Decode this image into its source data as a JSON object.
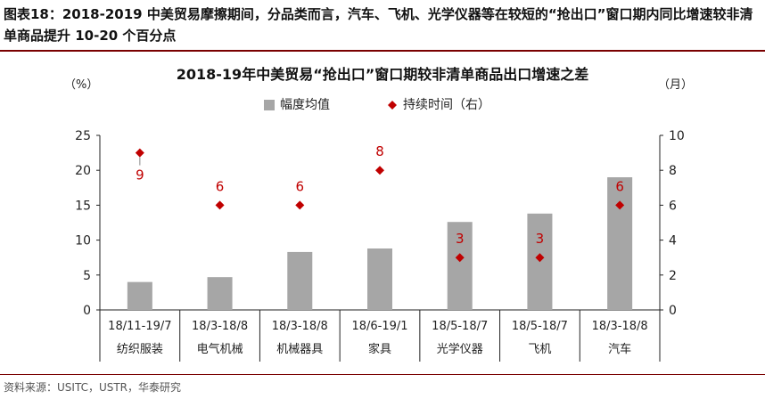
{
  "header": {
    "figure_label": "图表18：",
    "text": "2018-2019 中美贸易摩擦期间，分品类而言，汽车、飞机、光学仪器等在较短的“抢出口”窗口期内同比增速较非清单商品提升 10-20 个百分点"
  },
  "source": "资料来源：USITC，USTR，华泰研究",
  "chart_data": {
    "type": "bar",
    "title": "2018-19年中美贸易“抢出口”窗口期较非清单商品出口增速之差",
    "left_unit": "（%）",
    "right_unit": "（月）",
    "categories": [
      {
        "period": "18/11-19/7",
        "name": "纺织服装"
      },
      {
        "period": "18/3-18/8",
        "name": "电气机械"
      },
      {
        "period": "18/3-18/8",
        "name": "机械器具"
      },
      {
        "period": "18/6-19/1",
        "name": "家具"
      },
      {
        "period": "18/5-18/7",
        "name": "光学仪器"
      },
      {
        "period": "18/5-18/7",
        "name": "飞机"
      },
      {
        "period": "18/3-18/8",
        "name": "汽车"
      }
    ],
    "series": [
      {
        "name": "幅度均值",
        "type": "bar",
        "axis": "left",
        "color": "#a6a6a6",
        "values": [
          4.0,
          4.7,
          8.3,
          8.8,
          12.6,
          13.8,
          19.0
        ]
      },
      {
        "name": "持续时间（右）",
        "type": "scatter",
        "axis": "right",
        "color": "#c00000",
        "values": [
          9,
          6,
          6,
          8,
          3,
          3,
          6
        ]
      }
    ],
    "ylim_left": [
      0,
      25
    ],
    "yticks_left": [
      0,
      5,
      10,
      15,
      20,
      25
    ],
    "ylim_right": [
      0,
      10
    ],
    "yticks_right": [
      0,
      2,
      4,
      6,
      8,
      10
    ],
    "legend_position": "top-center"
  }
}
